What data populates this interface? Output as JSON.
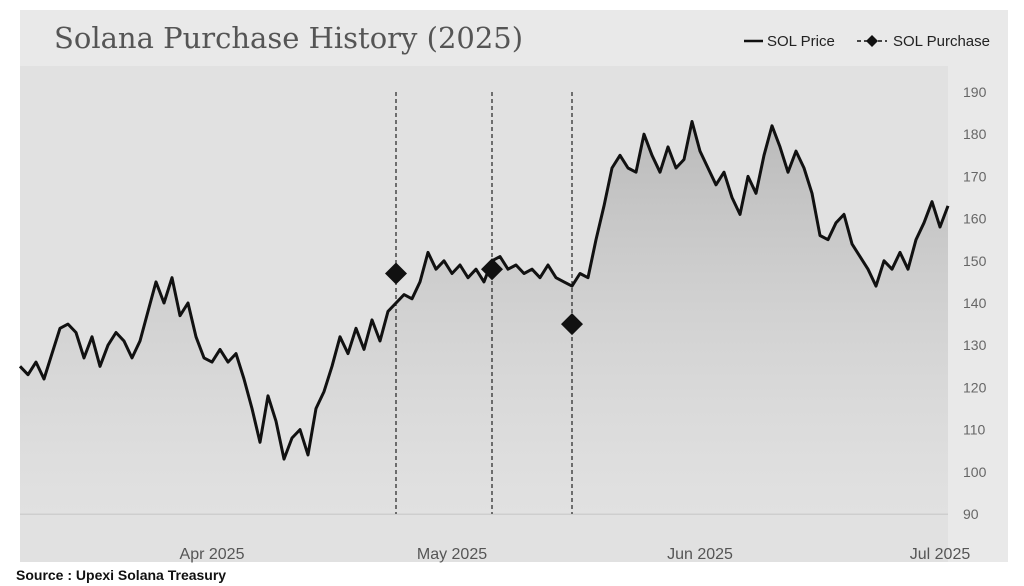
{
  "source_note": "Source : Upexi Solana Treasury",
  "colors": {
    "frame_bg": "#e9e9e9",
    "plot_bg": "#e1e1e1",
    "price_line": "#111111",
    "marker": "#111111"
  },
  "chart_data": {
    "type": "line",
    "title": "Solana Purchase History (2025)",
    "xlabel": "",
    "ylabel": "",
    "x_range": [
      "2025-03-08",
      "2025-07-02"
    ],
    "ylim": [
      90,
      190
    ],
    "yticks": [
      90,
      100,
      110,
      120,
      130,
      140,
      150,
      160,
      170,
      180,
      190
    ],
    "y_axis_position": "right",
    "xticks": [
      {
        "date": "2025-04-01",
        "label": "Apr 2025"
      },
      {
        "date": "2025-05-01",
        "label": "May 2025"
      },
      {
        "date": "2025-06-01",
        "label": "Jun 2025"
      },
      {
        "date": "2025-07-01",
        "label": "Jul 2025"
      }
    ],
    "legend": {
      "position": "top-right",
      "entries": [
        "SOL Price",
        "SOL Purchase"
      ]
    },
    "series": [
      {
        "name": "SOL Price",
        "points": [
          [
            "2025-03-08",
            125
          ],
          [
            "2025-03-09",
            123
          ],
          [
            "2025-03-10",
            126
          ],
          [
            "2025-03-11",
            122
          ],
          [
            "2025-03-12",
            128
          ],
          [
            "2025-03-13",
            134
          ],
          [
            "2025-03-14",
            135
          ],
          [
            "2025-03-15",
            133
          ],
          [
            "2025-03-16",
            127
          ],
          [
            "2025-03-17",
            132
          ],
          [
            "2025-03-18",
            125
          ],
          [
            "2025-03-19",
            130
          ],
          [
            "2025-03-20",
            133
          ],
          [
            "2025-03-21",
            131
          ],
          [
            "2025-03-22",
            127
          ],
          [
            "2025-03-23",
            131
          ],
          [
            "2025-03-24",
            138
          ],
          [
            "2025-03-25",
            145
          ],
          [
            "2025-03-26",
            140
          ],
          [
            "2025-03-27",
            146
          ],
          [
            "2025-03-28",
            137
          ],
          [
            "2025-03-29",
            140
          ],
          [
            "2025-03-30",
            132
          ],
          [
            "2025-03-31",
            127
          ],
          [
            "2025-04-01",
            126
          ],
          [
            "2025-04-02",
            129
          ],
          [
            "2025-04-03",
            126
          ],
          [
            "2025-04-04",
            128
          ],
          [
            "2025-04-05",
            122
          ],
          [
            "2025-04-06",
            115
          ],
          [
            "2025-04-07",
            107
          ],
          [
            "2025-04-08",
            118
          ],
          [
            "2025-04-09",
            112
          ],
          [
            "2025-04-10",
            103
          ],
          [
            "2025-04-11",
            108
          ],
          [
            "2025-04-12",
            110
          ],
          [
            "2025-04-13",
            104
          ],
          [
            "2025-04-14",
            115
          ],
          [
            "2025-04-15",
            119
          ],
          [
            "2025-04-16",
            125
          ],
          [
            "2025-04-17",
            132
          ],
          [
            "2025-04-18",
            128
          ],
          [
            "2025-04-19",
            134
          ],
          [
            "2025-04-20",
            129
          ],
          [
            "2025-04-21",
            136
          ],
          [
            "2025-04-22",
            131
          ],
          [
            "2025-04-23",
            138
          ],
          [
            "2025-04-24",
            140
          ],
          [
            "2025-04-25",
            142
          ],
          [
            "2025-04-26",
            141
          ],
          [
            "2025-04-27",
            145
          ],
          [
            "2025-04-28",
            152
          ],
          [
            "2025-04-29",
            148
          ],
          [
            "2025-04-30",
            150
          ],
          [
            "2025-05-01",
            147
          ],
          [
            "2025-05-02",
            149
          ],
          [
            "2025-05-03",
            146
          ],
          [
            "2025-05-04",
            148
          ],
          [
            "2025-05-05",
            145
          ],
          [
            "2025-05-06",
            150
          ],
          [
            "2025-05-07",
            151
          ],
          [
            "2025-05-08",
            148
          ],
          [
            "2025-05-09",
            149
          ],
          [
            "2025-05-10",
            147
          ],
          [
            "2025-05-11",
            148
          ],
          [
            "2025-05-12",
            146
          ],
          [
            "2025-05-13",
            149
          ],
          [
            "2025-05-14",
            146
          ],
          [
            "2025-05-15",
            145
          ],
          [
            "2025-05-16",
            144
          ],
          [
            "2025-05-17",
            147
          ],
          [
            "2025-05-18",
            146
          ],
          [
            "2025-05-19",
            155
          ],
          [
            "2025-05-20",
            163
          ],
          [
            "2025-05-21",
            172
          ],
          [
            "2025-05-22",
            175
          ],
          [
            "2025-05-23",
            172
          ],
          [
            "2025-05-24",
            171
          ],
          [
            "2025-05-25",
            180
          ],
          [
            "2025-05-26",
            175
          ],
          [
            "2025-05-27",
            171
          ],
          [
            "2025-05-28",
            177
          ],
          [
            "2025-05-29",
            172
          ],
          [
            "2025-05-30",
            174
          ],
          [
            "2025-05-31",
            183
          ],
          [
            "2025-06-01",
            176
          ],
          [
            "2025-06-02",
            172
          ],
          [
            "2025-06-03",
            168
          ],
          [
            "2025-06-04",
            171
          ],
          [
            "2025-06-05",
            165
          ],
          [
            "2025-06-06",
            161
          ],
          [
            "2025-06-07",
            170
          ],
          [
            "2025-06-08",
            166
          ],
          [
            "2025-06-09",
            175
          ],
          [
            "2025-06-10",
            182
          ],
          [
            "2025-06-11",
            177
          ],
          [
            "2025-06-12",
            171
          ],
          [
            "2025-06-13",
            176
          ],
          [
            "2025-06-14",
            172
          ],
          [
            "2025-06-15",
            166
          ],
          [
            "2025-06-16",
            156
          ],
          [
            "2025-06-17",
            155
          ],
          [
            "2025-06-18",
            159
          ],
          [
            "2025-06-19",
            161
          ],
          [
            "2025-06-20",
            154
          ],
          [
            "2025-06-21",
            151
          ],
          [
            "2025-06-22",
            148
          ],
          [
            "2025-06-23",
            144
          ],
          [
            "2025-06-24",
            150
          ],
          [
            "2025-06-25",
            148
          ],
          [
            "2025-06-26",
            152
          ],
          [
            "2025-06-27",
            148
          ],
          [
            "2025-06-28",
            155
          ],
          [
            "2025-06-29",
            159
          ],
          [
            "2025-06-30",
            164
          ],
          [
            "2025-07-01",
            158
          ],
          [
            "2025-07-02",
            163
          ]
        ]
      },
      {
        "name": "SOL Purchase",
        "points": [
          [
            "2025-04-24",
            147
          ],
          [
            "2025-05-06",
            148
          ],
          [
            "2025-05-16",
            135
          ]
        ]
      }
    ]
  }
}
